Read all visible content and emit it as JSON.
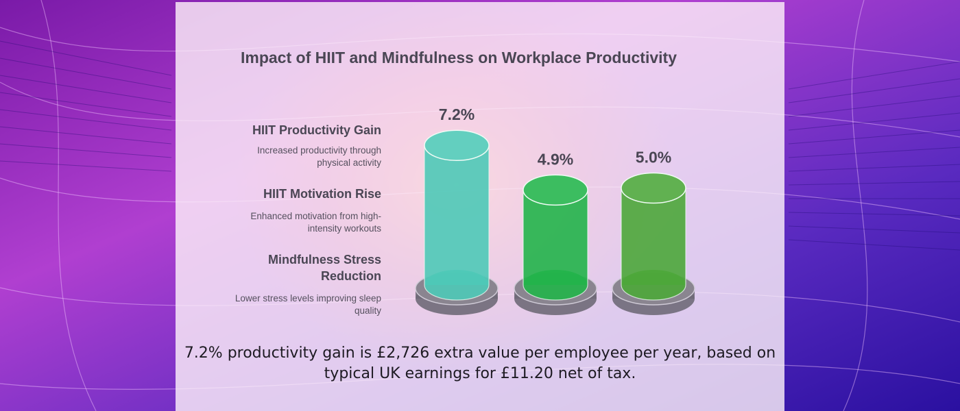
{
  "chart_data": {
    "type": "bar",
    "title": "Impact of HIIT and Mindfulness on Workplace Productivity",
    "categories": [
      "HIIT Productivity Gain",
      "HIIT Motivation Rise",
      "Mindfulness Stress Reduction"
    ],
    "descriptions": [
      "Increased productivity through physical activity",
      "Enhanced motivation from high-intensity workouts",
      "Lower stress levels improving sleep quality"
    ],
    "values": [
      7.2,
      4.9,
      5.0
    ],
    "value_labels": [
      "7.2%",
      "4.9%",
      "5.0%"
    ],
    "bar_colors": [
      "#4ec9b7",
      "#22b44a",
      "#4ca73a"
    ],
    "base_color": "#8a8590"
  },
  "footnote": "7.2% productivity gain is £2,726 extra value per employee per year, based on typical UK earnings for £11.20 net of tax."
}
